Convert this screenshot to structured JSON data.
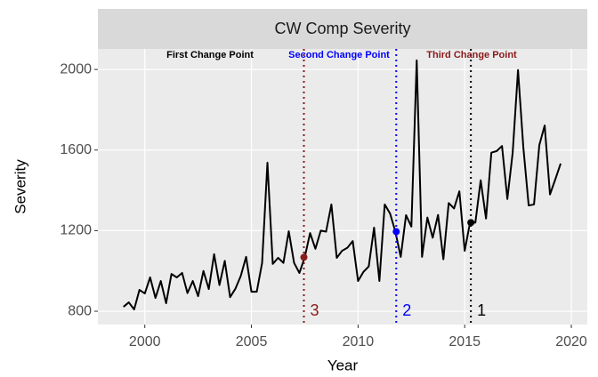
{
  "chart_data": {
    "type": "line",
    "title": "CW Comp Severity",
    "x_label": "Year",
    "y_label": "Severity",
    "x": [
      1999.0,
      1999.25,
      1999.5,
      1999.75,
      2000.0,
      2000.25,
      2000.5,
      2000.75,
      2001.0,
      2001.25,
      2001.5,
      2001.75,
      2002.0,
      2002.25,
      2002.5,
      2002.75,
      2003.0,
      2003.25,
      2003.5,
      2003.75,
      2004.0,
      2004.25,
      2004.5,
      2004.75,
      2005.0,
      2005.25,
      2005.5,
      2005.75,
      2006.0,
      2006.25,
      2006.5,
      2006.75,
      2007.0,
      2007.25,
      2007.5,
      2007.75,
      2008.0,
      2008.25,
      2008.5,
      2008.75,
      2009.0,
      2009.25,
      2009.5,
      2009.75,
      2010.0,
      2010.25,
      2010.5,
      2010.75,
      2011.0,
      2011.25,
      2011.5,
      2011.75,
      2012.0,
      2012.25,
      2012.5,
      2012.75,
      2013.0,
      2013.25,
      2013.5,
      2013.75,
      2014.0,
      2014.25,
      2014.5,
      2014.75,
      2015.0,
      2015.25,
      2015.5,
      2015.75,
      2016.0,
      2016.25,
      2016.5,
      2016.75,
      2017.0,
      2017.25,
      2017.5,
      2017.75,
      2018.0,
      2018.25,
      2018.5,
      2018.75,
      2019.0,
      2019.25,
      2019.5
    ],
    "series": [
      {
        "color": "#000000",
        "values": [
          822,
          844,
          809,
          906,
          888,
          968,
          866,
          950,
          840,
          985,
          968,
          990,
          890,
          950,
          875,
          1000,
          910,
          1083,
          930,
          1050,
          870,
          912,
          975,
          1070,
          897,
          897,
          1040,
          1537,
          1035,
          1065,
          1040,
          1197,
          1040,
          990,
          1068,
          1188,
          1110,
          1200,
          1195,
          1330,
          1065,
          1100,
          1115,
          1148,
          950,
          995,
          1022,
          1215,
          950,
          1330,
          1285,
          1195,
          1070,
          1277,
          1220,
          2045,
          1070,
          1265,
          1165,
          1278,
          1058,
          1337,
          1310,
          1395,
          1100,
          1240,
          1240,
          1450,
          1260,
          1587,
          1595,
          1620,
          1357,
          1587,
          1997,
          1613,
          1325,
          1330,
          1625,
          1722,
          1380,
          1455,
          1533
        ]
      }
    ],
    "change_points": [
      {
        "label": "First Change Point",
        "x": 2015.29,
        "value": 1240,
        "tag": 1,
        "color": "#000000",
        "line_style": "dotted"
      },
      {
        "label": "Second Change Point",
        "x": 2011.79,
        "value": 1195,
        "tag": 2,
        "color": "#0000ff",
        "line_style": "dotted"
      },
      {
        "label": "Third Change Point",
        "x": 2007.46,
        "value": 1068,
        "tag": 3,
        "color": "#8b1a1a",
        "line_style": "dotted"
      }
    ],
    "xlim": [
      1997.8,
      2020.75
    ],
    "ylim": [
      734,
      2102
    ],
    "xticks": [
      2000,
      2005,
      2010,
      2015,
      2020
    ],
    "yticks": [
      800,
      1200,
      1600,
      2000
    ],
    "grid": true
  }
}
